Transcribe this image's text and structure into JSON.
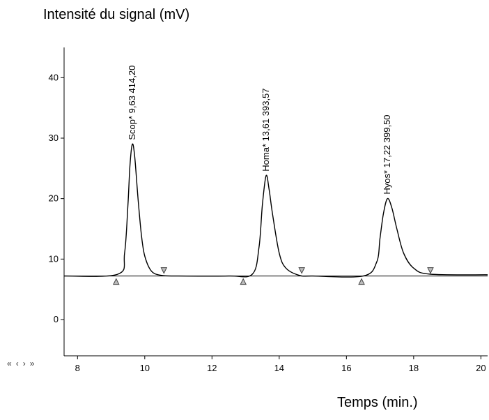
{
  "chart_data": {
    "type": "line",
    "ylabel": "Intensité du signal (mV)",
    "xlabel": "Temps (min.)",
    "xlim": [
      7.6,
      20.2
    ],
    "ylim": [
      -6,
      45
    ],
    "x_ticks": [
      8,
      10,
      12,
      14,
      16,
      18,
      20
    ],
    "y_ticks": [
      0,
      10,
      20,
      30,
      40
    ],
    "baseline": 7.2,
    "series": [
      {
        "x": [
          7.6,
          9.2,
          9.4,
          9.5,
          9.56,
          9.63,
          9.7,
          9.8,
          9.9,
          10.0,
          10.2,
          10.5,
          11.0,
          12.5,
          13.2,
          13.4,
          13.5,
          13.61,
          13.7,
          13.8,
          14.0,
          14.2,
          14.6,
          15.0,
          16.5,
          16.9,
          17.0,
          17.1,
          17.22,
          17.35,
          17.5,
          17.7,
          18.0,
          18.5,
          20.2
        ],
        "y": [
          7.2,
          7.5,
          11.0,
          19.0,
          25.5,
          29.0,
          27.0,
          20.0,
          14.0,
          10.5,
          8.0,
          7.3,
          7.2,
          7.2,
          7.5,
          12.0,
          19.0,
          23.8,
          21.5,
          17.5,
          11.0,
          8.5,
          7.3,
          7.2,
          7.2,
          9.5,
          13.5,
          17.5,
          20.0,
          18.5,
          15.0,
          11.0,
          8.5,
          7.5,
          7.4
        ]
      }
    ],
    "peaks": [
      {
        "label": "Scop* 9,63  414,20",
        "x": 9.63,
        "y": 29.0
      },
      {
        "label": "Homa* 13,61  393,57",
        "x": 13.61,
        "y": 23.8
      },
      {
        "label": "Hyos* 17,22  399,50",
        "x": 17.22,
        "y": 20.0
      }
    ],
    "peak_start_markers": [
      {
        "x": 9.15,
        "y": 7.2
      },
      {
        "x": 12.93,
        "y": 7.2
      },
      {
        "x": 16.45,
        "y": 7.2
      }
    ],
    "peak_end_markers": [
      {
        "x": 10.57,
        "y": 7.2
      },
      {
        "x": 14.67,
        "y": 7.2
      },
      {
        "x": 18.5,
        "y": 7.2
      }
    ]
  },
  "nav": {
    "first": "«",
    "prev": "‹",
    "next": "›",
    "last": "»"
  }
}
